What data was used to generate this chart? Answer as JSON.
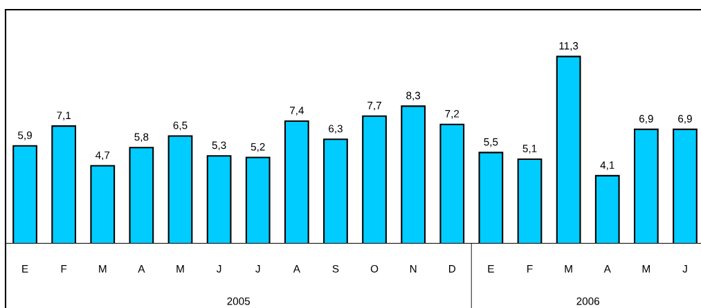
{
  "chart_data": {
    "type": "bar",
    "categories": [
      "E",
      "F",
      "M",
      "A",
      "M",
      "J",
      "J",
      "A",
      "S",
      "O",
      "N",
      "D",
      "E",
      "F",
      "M",
      "A",
      "M",
      "J"
    ],
    "values": [
      5.9,
      7.1,
      4.7,
      5.8,
      6.5,
      5.3,
      5.2,
      7.4,
      6.3,
      7.7,
      8.3,
      7.2,
      5.5,
      5.1,
      11.3,
      4.1,
      6.9,
      6.9
    ],
    "value_labels": [
      "5,9",
      "7,1",
      "4,7",
      "5,8",
      "6,5",
      "5,3",
      "5,2",
      "7,4",
      "6,3",
      "7,7",
      "8,3",
      "7,2",
      "5,5",
      "5,1",
      "11,3",
      "4,1",
      "6,9",
      "6,9"
    ],
    "color": "#00ccff",
    "grid": false,
    "annotations": [
      "2005",
      "2006"
    ]
  }
}
